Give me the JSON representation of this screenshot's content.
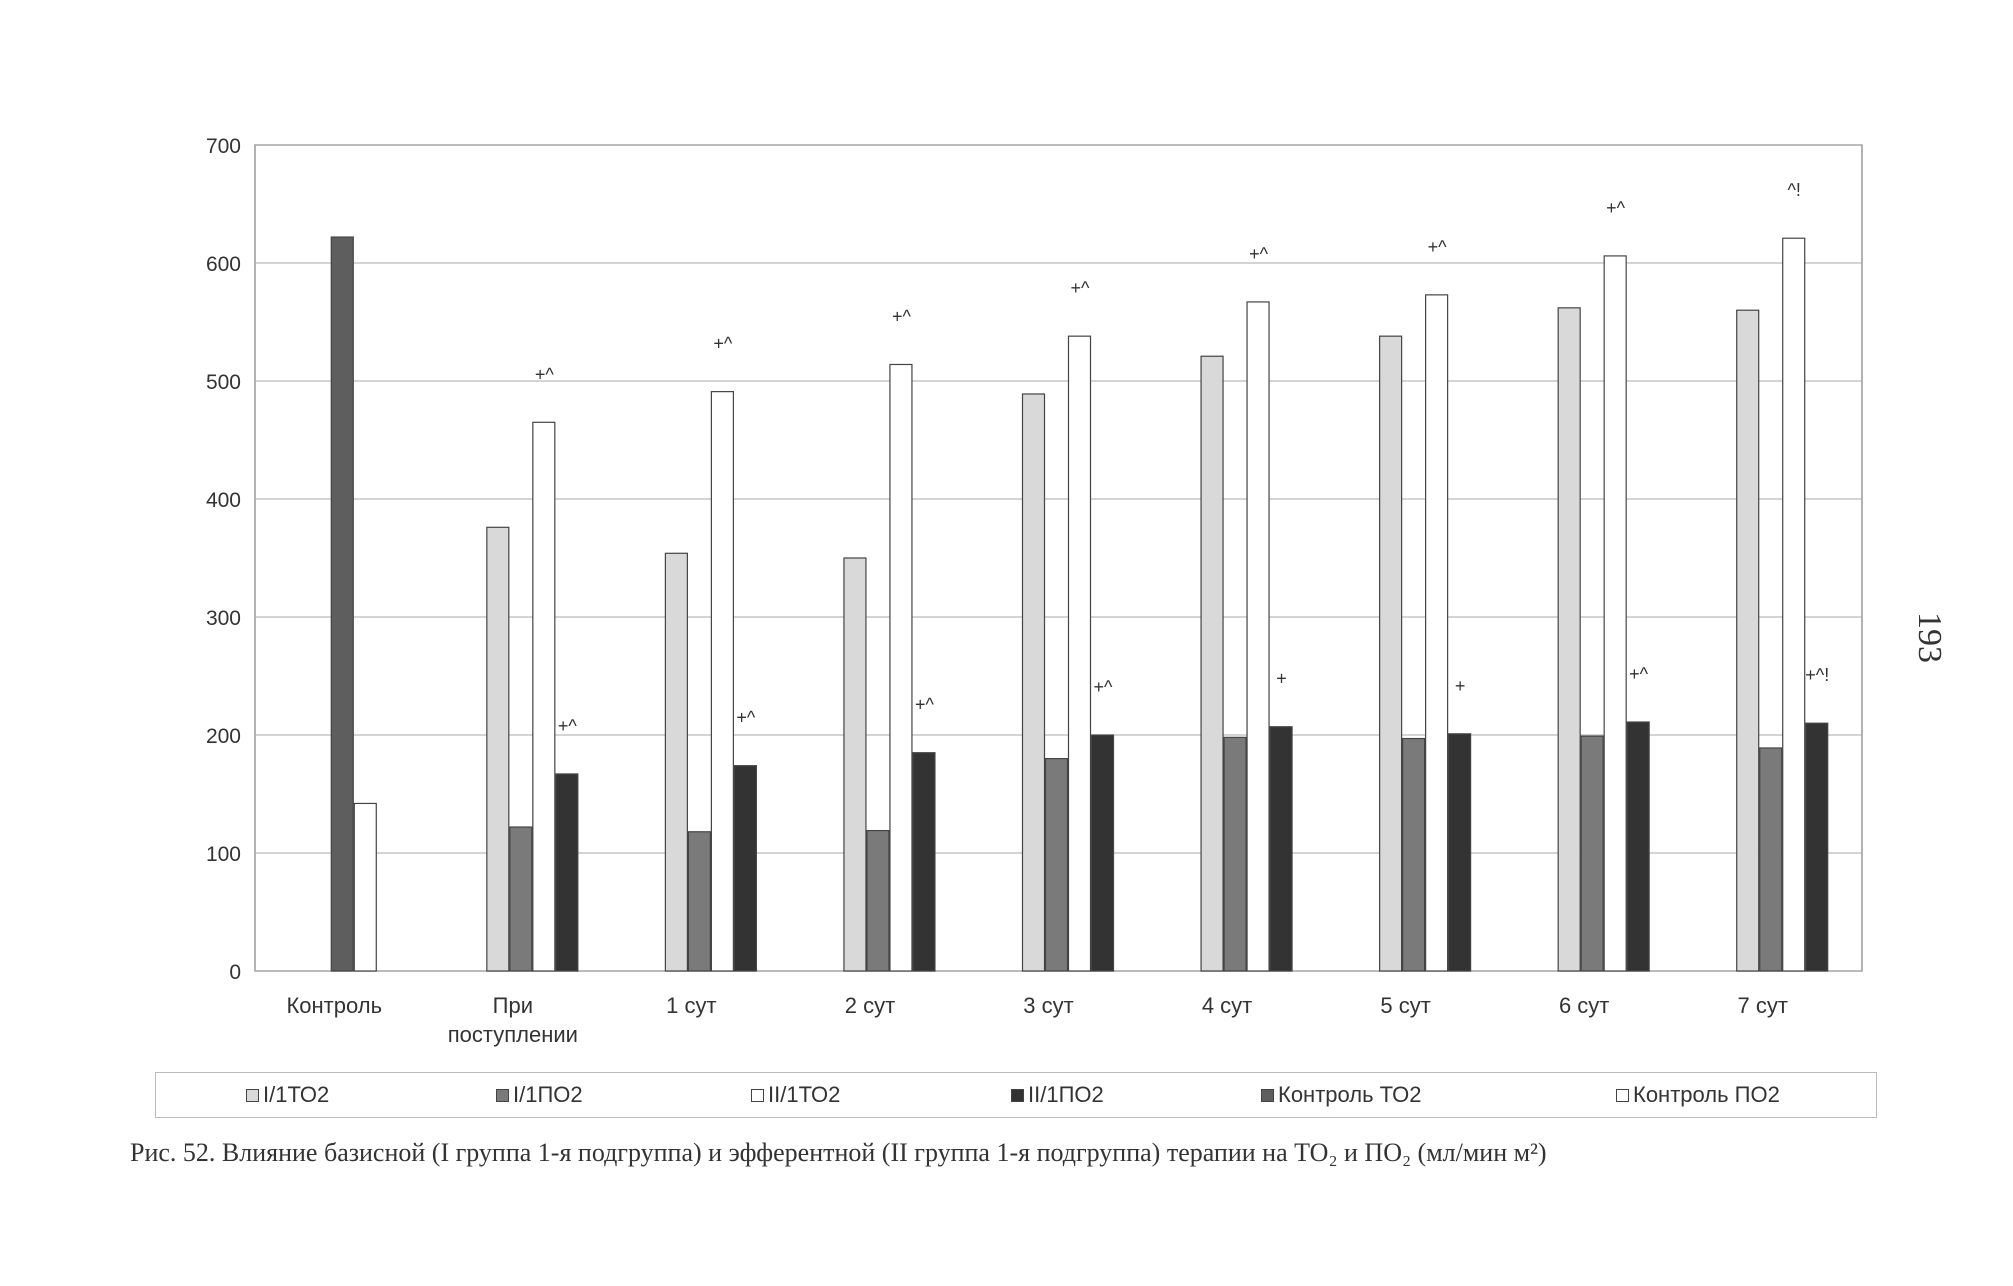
{
  "chart_data": {
    "type": "bar",
    "categories": [
      "Контроль",
      "При поступлении",
      "1 сут",
      "2 сут",
      "3 сут",
      "4 сут",
      "5 сут",
      "6 сут",
      "7 сут"
    ],
    "category_lines": [
      [
        "Контроль"
      ],
      [
        "При",
        "поступлении"
      ],
      [
        "1 сут"
      ],
      [
        "2 сут"
      ],
      [
        "3 сут"
      ],
      [
        "4 сут"
      ],
      [
        "5 сут"
      ],
      [
        "6 сут"
      ],
      [
        "7 сут"
      ]
    ],
    "series": [
      {
        "name": "I/1ТО2",
        "color": "#d9d9d9",
        "values": [
          null,
          376,
          354,
          350,
          489,
          521,
          538,
          562,
          560
        ],
        "annotations": [
          null,
          null,
          null,
          null,
          null,
          null,
          null,
          null,
          null
        ]
      },
      {
        "name": "I/1ПО2",
        "color": "#7a7a7a",
        "values": [
          null,
          122,
          118,
          119,
          180,
          198,
          197,
          199,
          189
        ],
        "annotations": [
          null,
          null,
          null,
          null,
          null,
          null,
          null,
          null,
          null
        ]
      },
      {
        "name": "II/1ТО2",
        "color": "#ffffff",
        "values": [
          null,
          465,
          491,
          514,
          538,
          567,
          573,
          606,
          621
        ],
        "annotations": [
          null,
          "+^",
          "+^",
          "+^",
          "+^",
          "+^",
          "+^",
          "+^",
          "^!"
        ]
      },
      {
        "name": "II/1ПО2",
        "color": "#333333",
        "values": [
          null,
          167,
          174,
          185,
          200,
          207,
          201,
          211,
          210
        ],
        "annotations": [
          null,
          "+^",
          "+^",
          "+^",
          "+^",
          "+",
          "+",
          "+^",
          "+^!"
        ]
      },
      {
        "name": "Контроль ТО2",
        "color": "#5e5e5e",
        "values": [
          622,
          null,
          null,
          null,
          null,
          null,
          null,
          null,
          null
        ],
        "annotations": [
          null,
          null,
          null,
          null,
          null,
          null,
          null,
          null,
          null
        ]
      },
      {
        "name": "Контроль ПО2",
        "color": "#ffffff",
        "values": [
          142,
          null,
          null,
          null,
          null,
          null,
          null,
          null,
          null
        ],
        "annotations": [
          null,
          null,
          null,
          null,
          null,
          null,
          null,
          null,
          null
        ]
      }
    ],
    "yticks": [
      0,
      100,
      200,
      300,
      400,
      500,
      600,
      700
    ],
    "ylim": [
      0,
      700
    ],
    "grid": true,
    "legend": "bottom",
    "xlabel": "",
    "ylabel": ""
  },
  "caption": "Рис. 52. Влияние базисной (I группа 1-я подгруппа) и эфферентной (II группа 1-я подгруппа) терапии на ТО₂ и ПО₂ (мл/мин м²)",
  "page_number": "193"
}
